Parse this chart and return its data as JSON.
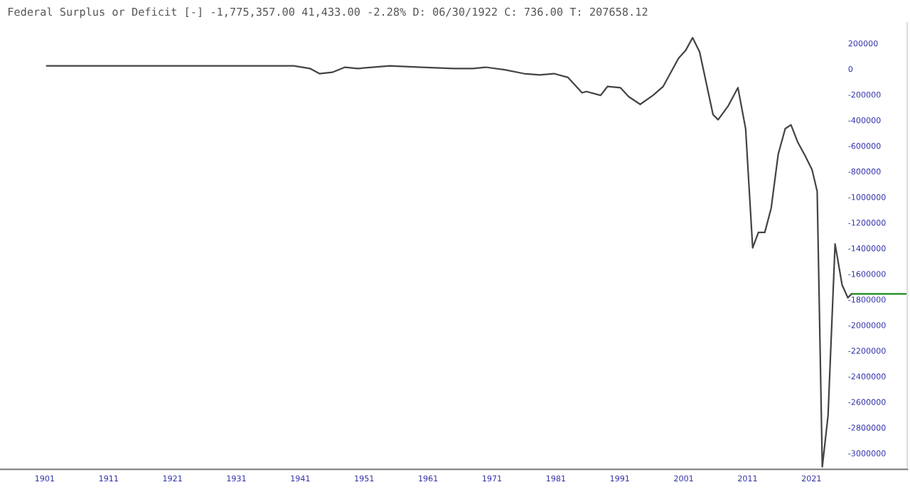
{
  "chart_data": {
    "type": "line",
    "title": "Federal Surplus or Deficit [-] -1,775,357.00 41,433.00 -2.28% D: 06/30/1922 C: 736.00 T: 207658.12",
    "x": [
      1901.3,
      1910,
      1920,
      1930,
      1940,
      1942.5,
      1944,
      1946,
      1948,
      1950,
      1955,
      1960,
      1965,
      1968,
      1970,
      1973,
      1976,
      1978.5,
      1980.7,
      1982.9,
      1985.1,
      1985.8,
      1988.0,
      1989.1,
      1991.1,
      1992.4,
      1994.2,
      1996.2,
      1997.8,
      2000.2,
      2001.3,
      2002.4,
      2003.5,
      2005.6,
      2006.4,
      2008.0,
      2009.5,
      2010.7,
      2011.8,
      2012.7,
      2013.7,
      2014.7,
      2015.8,
      2016.9,
      2017.8,
      2018.9,
      2020.0,
      2021.1,
      2021.9,
      2022.7,
      2023.6,
      2024.7,
      2025.8,
      2026.7,
      2027.3
    ],
    "series": [
      {
        "color": "#444444",
        "values": [
          0,
          0,
          0,
          0,
          0,
          -20000,
          -60000,
          -50000,
          -10000,
          -20000,
          0,
          -10000,
          -20000,
          -20000,
          -10000,
          -30000,
          -60000,
          -70000,
          -60000,
          -90000,
          -210000,
          -200000,
          -230000,
          -160000,
          -170000,
          -240000,
          -300000,
          -230000,
          -160000,
          60000,
          120000,
          220000,
          110000,
          -380000,
          -420000,
          -310000,
          -170000,
          -490000,
          -1420000,
          -1300000,
          -1300000,
          -1110000,
          -690000,
          -490000,
          -460000,
          -600000,
          -700000,
          -810000,
          -980000,
          -3130000,
          -2730000,
          -1390000,
          -1710000,
          -1810000,
          -1780000
        ]
      },
      {
        "color": "#1a8a1a",
        "x": [
          2027.3,
          2036
        ],
        "values": [
          -1780000,
          -1780000
        ]
      }
    ],
    "xlim": [
      1894,
      2036
    ],
    "ylim": [
      -3150000,
      338000
    ],
    "xticks": [
      1901,
      1911,
      1921,
      1931,
      1941,
      1951,
      1961,
      1971,
      1981,
      1991,
      2001,
      2011,
      2021
    ],
    "yticks": [
      200000,
      0,
      -200000,
      -400000,
      -600000,
      -800000,
      -1000000,
      -1200000,
      -1400000,
      -1600000,
      -1800000,
      -2000000,
      -2200000,
      -2400000,
      -2600000,
      -2800000,
      -3000000
    ],
    "grid": false,
    "legend": false,
    "marker": "none",
    "line_style": "solid"
  }
}
